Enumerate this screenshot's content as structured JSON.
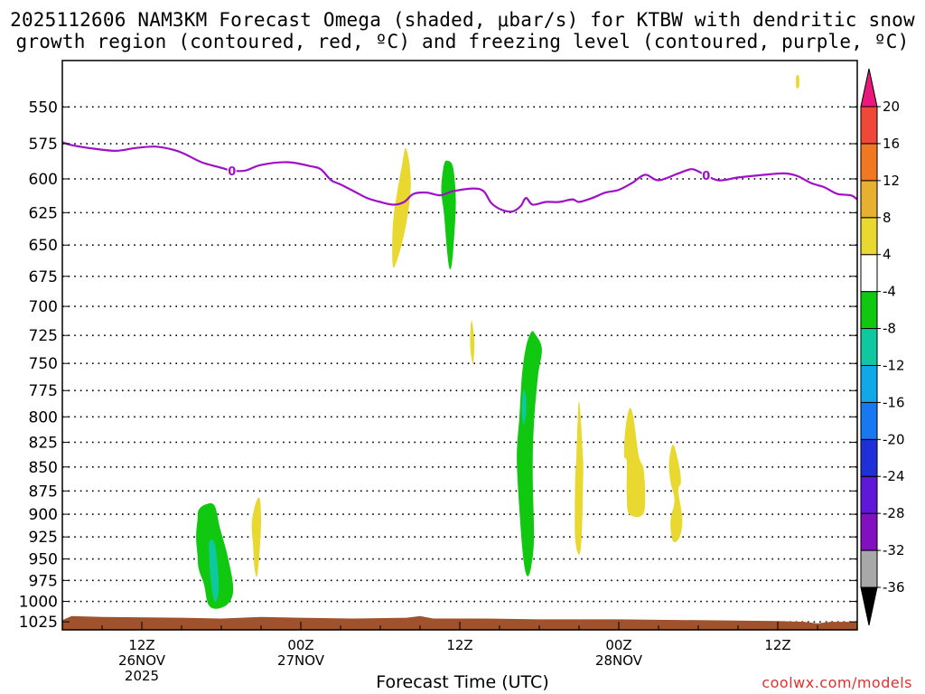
{
  "title": {
    "line1": "2025112606 NAM3KM Forecast Omega (shaded, μbar/s) for KTBW with dendritic snow",
    "line2": "growth region (contoured, red, ºC) and freezing level (contoured, purple, ºC)"
  },
  "footer": {
    "xlabel": "Forecast Time (UTC)",
    "credit": "coolwx.com/models"
  },
  "chart_data": {
    "type": "contour",
    "x_unit": "forecast hour from 2025-11-26 06Z",
    "xlim": [
      0,
      60
    ],
    "y_unit": "hPa",
    "ylim": [
      1035,
      520
    ],
    "y_log_pressure": true,
    "grid": true,
    "y_ticks": [
      550,
      575,
      600,
      625,
      650,
      675,
      700,
      725,
      750,
      775,
      800,
      825,
      850,
      875,
      900,
      925,
      950,
      975,
      1000,
      1025
    ],
    "x_ticks": [
      {
        "hour": 6,
        "lines": [
          "12Z",
          "26NOV",
          "2025"
        ]
      },
      {
        "hour": 18,
        "lines": [
          "00Z",
          "27NOV"
        ]
      },
      {
        "hour": 30,
        "lines": [
          "12Z"
        ]
      },
      {
        "hour": 42,
        "lines": [
          "00Z",
          "28NOV"
        ]
      },
      {
        "hour": 54,
        "lines": [
          "12Z"
        ]
      }
    ],
    "freezing_level": {
      "color": "#a010c8",
      "label": "0",
      "label_hours": [
        12.8,
        48.6
      ],
      "points": [
        [
          0,
          574
        ],
        [
          0.7,
          576
        ],
        [
          2,
          578
        ],
        [
          4,
          580
        ],
        [
          5.5,
          578
        ],
        [
          7,
          577
        ],
        [
          8.3,
          579
        ],
        [
          9.2,
          582
        ],
        [
          10.5,
          588
        ],
        [
          12,
          592
        ],
        [
          12.8,
          594
        ],
        [
          13.8,
          594
        ],
        [
          15,
          590
        ],
        [
          17,
          588
        ],
        [
          18.8,
          591
        ],
        [
          19.5,
          593
        ],
        [
          20.3,
          601
        ],
        [
          21,
          604
        ],
        [
          22,
          609
        ],
        [
          23,
          614
        ],
        [
          24,
          617
        ],
        [
          25,
          619
        ],
        [
          25.8,
          617
        ],
        [
          26.5,
          611
        ],
        [
          27.5,
          610
        ],
        [
          28.5,
          612
        ],
        [
          29.5,
          609
        ],
        [
          31,
          607
        ],
        [
          31.8,
          609
        ],
        [
          32.4,
          618
        ],
        [
          33.2,
          623
        ],
        [
          34,
          624
        ],
        [
          34.6,
          620
        ],
        [
          35,
          614
        ],
        [
          35.5,
          619
        ],
        [
          36.5,
          617
        ],
        [
          37.5,
          617
        ],
        [
          38.5,
          615
        ],
        [
          39,
          617
        ],
        [
          40,
          614
        ],
        [
          41,
          610
        ],
        [
          42,
          608
        ],
        [
          43,
          603
        ],
        [
          44,
          597
        ],
        [
          45,
          601
        ],
        [
          46.5,
          596
        ],
        [
          47.5,
          593
        ],
        [
          48.3,
          596
        ],
        [
          49.5,
          601
        ],
        [
          51,
          599
        ],
        [
          53,
          597
        ],
        [
          54.5,
          596
        ],
        [
          55.5,
          598
        ],
        [
          56.5,
          603
        ],
        [
          57.5,
          606
        ],
        [
          58.5,
          611
        ],
        [
          59.5,
          612
        ],
        [
          60,
          615
        ]
      ]
    },
    "omega_regions": [
      {
        "value_range": [
          -8,
          -4
        ],
        "points": [
          [
            10.3,
            895
          ],
          [
            10.9,
            889
          ],
          [
            11.5,
            891
          ],
          [
            11.9,
            915
          ],
          [
            12.5,
            948
          ],
          [
            12.9,
            985
          ],
          [
            12.5,
            1003
          ],
          [
            11.6,
            1009
          ],
          [
            11.0,
            1003
          ],
          [
            10.7,
            980
          ],
          [
            10.3,
            962
          ],
          [
            10.2,
            945
          ],
          [
            10.1,
            925
          ],
          [
            10.2,
            906
          ]
        ]
      },
      {
        "value_range": [
          -12,
          -8
        ],
        "points": [
          [
            11.1,
            930
          ],
          [
            11.5,
            932
          ],
          [
            11.7,
            955
          ],
          [
            11.8,
            985
          ],
          [
            11.6,
            1000
          ],
          [
            11.4,
            995
          ],
          [
            11.2,
            975
          ],
          [
            11.1,
            950
          ]
        ]
      },
      {
        "value_range": [
          4,
          8
        ],
        "points": [
          [
            14.6,
            888
          ],
          [
            14.9,
            883
          ],
          [
            15.0,
            905
          ],
          [
            14.9,
            940
          ],
          [
            14.7,
            970
          ],
          [
            14.5,
            960
          ],
          [
            14.4,
            935
          ],
          [
            14.3,
            910
          ]
        ]
      },
      {
        "value_range": [
          4,
          8
        ],
        "points": [
          [
            25.9,
            578
          ],
          [
            26.2,
            589
          ],
          [
            26.3,
            605
          ],
          [
            26.1,
            625
          ],
          [
            25.6,
            650
          ],
          [
            25.0,
            668
          ],
          [
            24.9,
            648
          ],
          [
            25.0,
            628
          ],
          [
            25.3,
            608
          ],
          [
            25.6,
            592
          ]
        ]
      },
      {
        "value_range": [
          -8,
          -4
        ],
        "points": [
          [
            28.8,
            590
          ],
          [
            29.1,
            587
          ],
          [
            29.5,
            592
          ],
          [
            29.7,
            615
          ],
          [
            29.6,
            640
          ],
          [
            29.4,
            665
          ],
          [
            29.2,
            668
          ],
          [
            29.0,
            650
          ],
          [
            28.8,
            625
          ],
          [
            28.6,
            608
          ]
        ]
      },
      {
        "value_range": [
          4,
          8
        ],
        "points": [
          [
            30.9,
            712
          ],
          [
            31.1,
            730
          ],
          [
            31.0,
            750
          ],
          [
            30.8,
            737
          ],
          [
            30.8,
            722
          ]
        ]
      },
      {
        "value_range": [
          -8,
          -4
        ],
        "points": [
          [
            35.0,
            735
          ],
          [
            35.4,
            722
          ],
          [
            35.7,
            724
          ],
          [
            36.2,
            737
          ],
          [
            35.9,
            762
          ],
          [
            35.6,
            806
          ],
          [
            35.5,
            855
          ],
          [
            35.6,
            925
          ],
          [
            35.4,
            958
          ],
          [
            35.1,
            970
          ],
          [
            34.8,
            950
          ],
          [
            34.5,
            895
          ],
          [
            34.3,
            840
          ],
          [
            34.5,
            800
          ],
          [
            34.7,
            760
          ]
        ]
      },
      {
        "value_range": [
          -12,
          -8
        ],
        "points": [
          [
            34.8,
            775
          ],
          [
            35.0,
            780
          ],
          [
            35.0,
            797
          ],
          [
            34.8,
            808
          ],
          [
            34.7,
            792
          ]
        ]
      },
      {
        "value_range": [
          4,
          8
        ],
        "points": [
          [
            39.0,
            785
          ],
          [
            39.3,
            840
          ],
          [
            39.3,
            870
          ],
          [
            39.2,
            925
          ],
          [
            39.0,
            945
          ],
          [
            38.7,
            925
          ],
          [
            38.7,
            870
          ],
          [
            38.8,
            840
          ]
        ]
      },
      {
        "value_range": [
          4,
          8
        ],
        "points": [
          [
            42.8,
            792
          ],
          [
            43.1,
            800
          ],
          [
            43.5,
            838
          ],
          [
            43.9,
            855
          ],
          [
            43.9,
            898
          ],
          [
            42.8,
            900
          ],
          [
            42.6,
            880
          ],
          [
            42.6,
            845
          ],
          [
            42.4,
            838
          ],
          [
            42.5,
            812
          ]
        ]
      },
      {
        "value_range": [
          4,
          8
        ],
        "points": [
          [
            46.1,
            827
          ],
          [
            46.5,
            845
          ],
          [
            46.7,
            865
          ],
          [
            46.5,
            875
          ],
          [
            46.8,
            905
          ],
          [
            46.6,
            925
          ],
          [
            46.1,
            930
          ],
          [
            45.9,
            908
          ],
          [
            46.2,
            885
          ],
          [
            45.9,
            865
          ],
          [
            45.8,
            845
          ]
        ]
      },
      {
        "value_range": [
          4,
          8
        ],
        "points": [
          [
            55.4,
            530
          ],
          [
            55.6,
            530
          ],
          [
            55.6,
            537
          ],
          [
            55.4,
            537
          ]
        ]
      }
    ],
    "terrain": {
      "color": "#a0522d",
      "points": [
        [
          0,
          1023
        ],
        [
          0.7,
          1018
        ],
        [
          3,
          1019
        ],
        [
          9,
          1020
        ],
        [
          12,
          1021
        ],
        [
          15,
          1019
        ],
        [
          18,
          1020
        ],
        [
          22,
          1021
        ],
        [
          26,
          1020
        ],
        [
          27,
          1018
        ],
        [
          28,
          1021
        ],
        [
          32,
          1021
        ],
        [
          36,
          1022
        ],
        [
          42,
          1022
        ],
        [
          48,
          1023
        ],
        [
          54,
          1024
        ],
        [
          56,
          1025
        ],
        [
          57,
          1027
        ],
        [
          58,
          1025
        ],
        [
          60,
          1025
        ]
      ]
    },
    "colorbar": {
      "label": "μbar/s",
      "arrow_low_color": "#000000",
      "arrow_high_color": "#e8187c",
      "bins": [
        {
          "from": -36,
          "to": -32,
          "color": "#a8a8a8"
        },
        {
          "from": -32,
          "to": -28,
          "color": "#8010c0"
        },
        {
          "from": -28,
          "to": -24,
          "color": "#6018d8"
        },
        {
          "from": -24,
          "to": -20,
          "color": "#2030d8"
        },
        {
          "from": -20,
          "to": -16,
          "color": "#1878f0"
        },
        {
          "from": -16,
          "to": -12,
          "color": "#10a8e8"
        },
        {
          "from": -12,
          "to": -8,
          "color": "#10c8a0"
        },
        {
          "from": -8,
          "to": -4,
          "color": "#10c810"
        },
        {
          "from": -4,
          "to": 4,
          "color": "#ffffff"
        },
        {
          "from": 4,
          "to": 8,
          "color": "#e8d830"
        },
        {
          "from": 8,
          "to": 12,
          "color": "#e8b030"
        },
        {
          "from": 12,
          "to": 16,
          "color": "#f07820"
        },
        {
          "from": 16,
          "to": 20,
          "color": "#f04838"
        }
      ],
      "tick_labels": [
        "-36",
        "-32",
        "-28",
        "-24",
        "-20",
        "-16",
        "-12",
        "-8",
        "-4",
        "4",
        "8",
        "12",
        "16",
        "20"
      ]
    }
  }
}
